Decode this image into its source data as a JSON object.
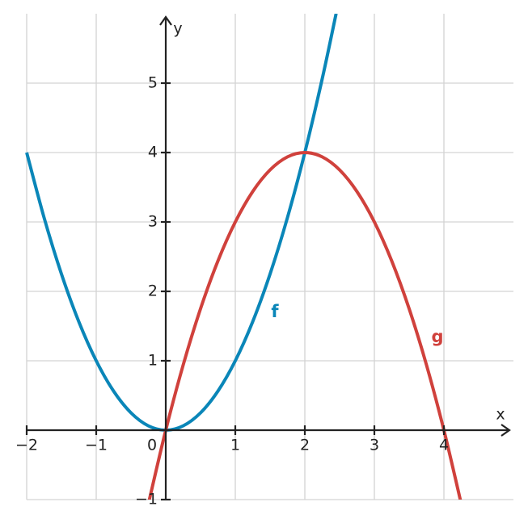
{
  "chart_data": {
    "type": "line",
    "xlabel": "x",
    "ylabel": "y",
    "xlim": [
      -2,
      5
    ],
    "ylim": [
      -1,
      6
    ],
    "xticks": [
      {
        "value": -2,
        "label": "−2"
      },
      {
        "value": -1,
        "label": "−1"
      },
      0,
      1,
      2,
      3,
      4
    ],
    "yticks": [
      {
        "value": -1,
        "label": "−1"
      },
      1,
      2,
      3,
      4,
      5
    ],
    "grid": true,
    "series": [
      {
        "name": "f",
        "color": "#0a86b8",
        "x": [
          -2,
          -1.75,
          -1.5,
          -1.25,
          -1,
          -0.75,
          -0.5,
          -0.25,
          0,
          0.25,
          0.5,
          0.75,
          1,
          1.25,
          1.5,
          1.75,
          2,
          2.25,
          2.45
        ],
        "values": [
          4,
          3.0625,
          2.25,
          1.5625,
          1,
          0.5625,
          0.25,
          0.0625,
          0,
          0.0625,
          0.25,
          0.5625,
          1,
          1.5625,
          2.25,
          3.0625,
          4,
          5.0625,
          6.0025
        ]
      },
      {
        "name": "g",
        "color": "#d0413c",
        "x": [
          -0.25,
          0,
          0.25,
          0.5,
          0.75,
          1,
          1.25,
          1.5,
          1.75,
          2,
          2.25,
          2.5,
          2.75,
          3,
          3.25,
          3.5,
          3.75,
          4,
          4.25
        ],
        "values": [
          -1.0625,
          0,
          0.9375,
          1.75,
          2.4375,
          3,
          3.4375,
          3.75,
          3.9375,
          4,
          3.9375,
          3.75,
          3.4375,
          3,
          2.4375,
          1.75,
          0.9375,
          0,
          -1.0625
        ]
      }
    ]
  }
}
